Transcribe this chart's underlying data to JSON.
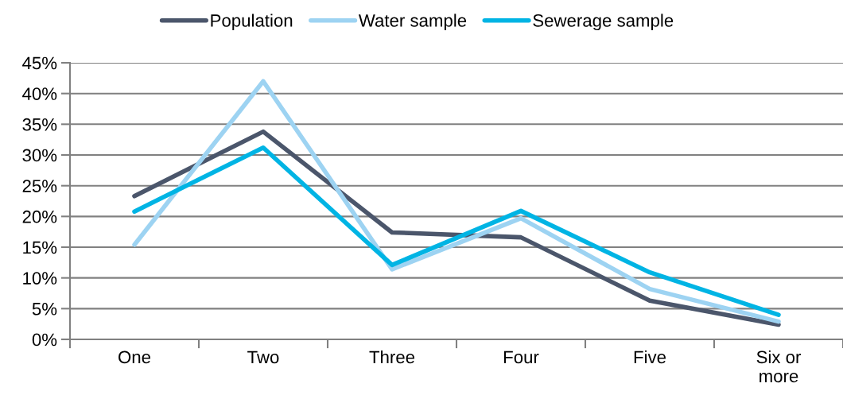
{
  "chart_data": {
    "type": "line",
    "categories": [
      "One",
      "Two",
      "Three",
      "Four",
      "Five",
      "Six or\nmore"
    ],
    "series": [
      {
        "name": "Population",
        "color": "#4b566b",
        "values": [
          23.3,
          33.8,
          17.4,
          16.6,
          6.3,
          2.4
        ]
      },
      {
        "name": "Water sample",
        "color": "#9dd3f2",
        "values": [
          15.4,
          42.0,
          11.4,
          19.7,
          8.2,
          2.9
        ]
      },
      {
        "name": "Sewerage sample",
        "color": "#00b4e4",
        "values": [
          20.8,
          31.2,
          12.1,
          20.9,
          10.9,
          4.0
        ]
      }
    ],
    "ylim": [
      0,
      45
    ],
    "yticks": [
      {
        "value": 0,
        "label": "0%"
      },
      {
        "value": 5,
        "label": "5%"
      },
      {
        "value": 10,
        "label": "10%"
      },
      {
        "value": 15,
        "label": "15%"
      },
      {
        "value": 20,
        "label": "20%"
      },
      {
        "value": 25,
        "label": "25%"
      },
      {
        "value": 30,
        "label": "30%"
      },
      {
        "value": 35,
        "label": "35%"
      },
      {
        "value": 40,
        "label": "40%"
      },
      {
        "value": 45,
        "label": "45%"
      }
    ],
    "grid": "y",
    "legend": "top",
    "marker": "none",
    "line_style": "solid"
  }
}
